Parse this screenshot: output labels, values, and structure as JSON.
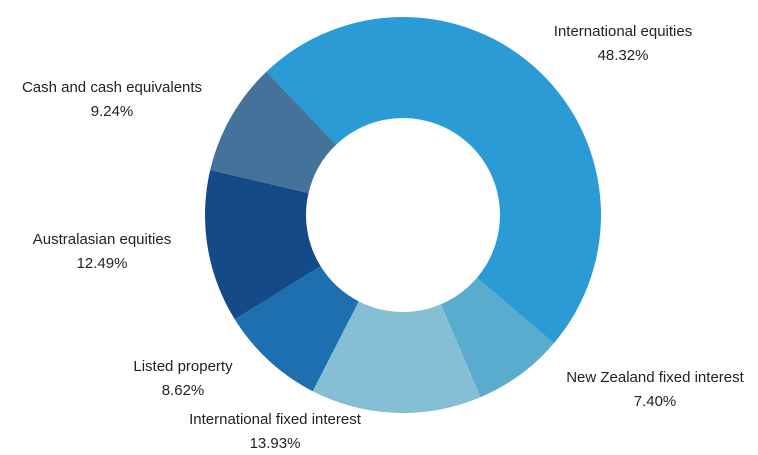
{
  "chart_data": {
    "type": "pie",
    "donut": true,
    "categories": [
      "International equities",
      "New Zealand fixed interest",
      "International fixed interest",
      "Listed property",
      "Australasian equities",
      "Cash and cash equivalents"
    ],
    "values": [
      48.32,
      7.4,
      13.93,
      8.62,
      12.49,
      9.24
    ],
    "value_labels": [
      "48.32%",
      "7.40%",
      "13.93%",
      "8.62%",
      "12.49%",
      "9.24%"
    ],
    "colors": [
      "#2a9bd4",
      "#5aaccf",
      "#84bfd6",
      "#1e6fb0",
      "#134a87",
      "#45729a"
    ]
  }
}
